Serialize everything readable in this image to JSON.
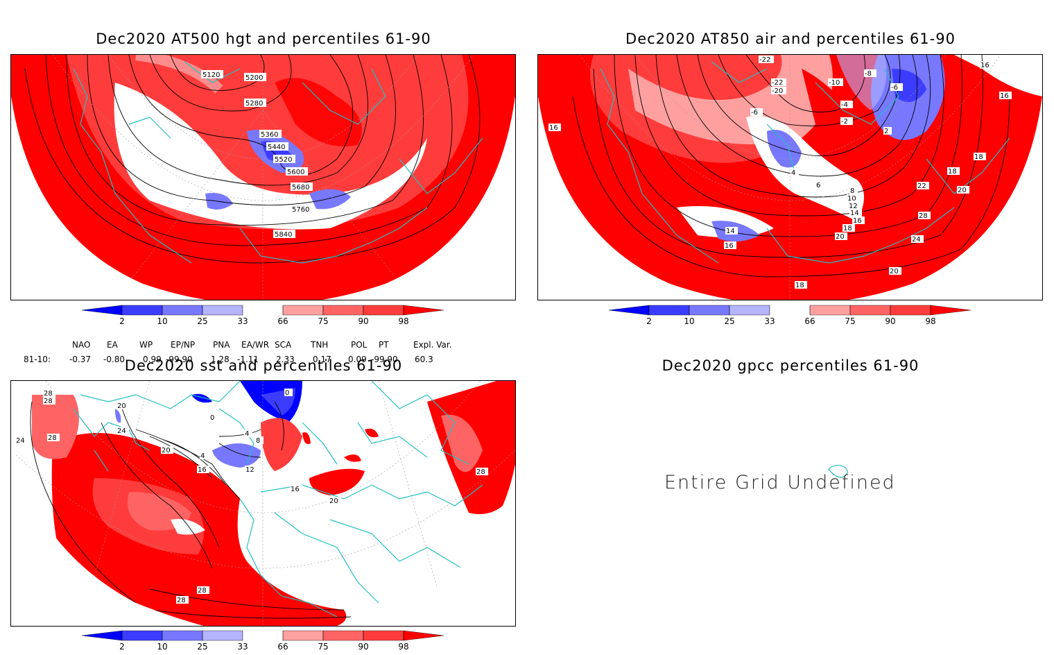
{
  "panels": {
    "top_left": {
      "title": "Dec2020 AT500 hgt and percentiles 61-90",
      "contour_labels": [
        "5120",
        "5200",
        "5280",
        "5360",
        "5440",
        "5520",
        "5600",
        "5680",
        "5760",
        "5840"
      ]
    },
    "top_right": {
      "title": "Dec2020 AT850 air and percentiles 61-90",
      "contour_labels": [
        "-22",
        "-22",
        "-20",
        "-10",
        "-8",
        "-6",
        "-6",
        "-4",
        "-2",
        "2",
        "4",
        "6",
        "8",
        "10",
        "12",
        "14",
        "16",
        "18",
        "20",
        "22",
        "24",
        "28",
        "16",
        "16",
        "18",
        "18",
        "16",
        "14",
        "16",
        "18",
        "20",
        "20"
      ]
    },
    "bottom_left": {
      "title": "Dec2020 sst and percentiles 61-90",
      "contour_labels": [
        "28",
        "28",
        "20",
        "24",
        "28",
        "24",
        "20",
        "16",
        "12",
        "4",
        "4",
        "8",
        "0",
        "0",
        "20",
        "16",
        "28",
        "28",
        "28"
      ]
    },
    "bottom_right": {
      "title": "Dec2020 gpcc percentiles 61-90",
      "message": "Entire Grid Undefined"
    }
  },
  "colorbar": {
    "labels": [
      "2",
      "10",
      "25",
      "33",
      "66",
      "75",
      "90",
      "98"
    ],
    "colors": [
      "#0000ff",
      "#3c3cff",
      "#7878ff",
      "#b4b4ff",
      "#ffffff",
      "#ffa0a0",
      "#ff6464",
      "#ff3c3c",
      "#ff0000"
    ]
  },
  "indices": {
    "header": [
      "NAO",
      "EA",
      "WP",
      "EP/NP",
      "PNA",
      "EA/WR",
      "SCA",
      "TNH",
      "POL",
      "PT",
      "Expl. Var."
    ],
    "row_label": "81-10:",
    "values": [
      "-0.37",
      "-0.80",
      "0.99",
      "-99.90",
      "1.28",
      "-1.11",
      "2.33",
      "0.17",
      "0.09",
      "-99.90",
      "60.3"
    ]
  }
}
